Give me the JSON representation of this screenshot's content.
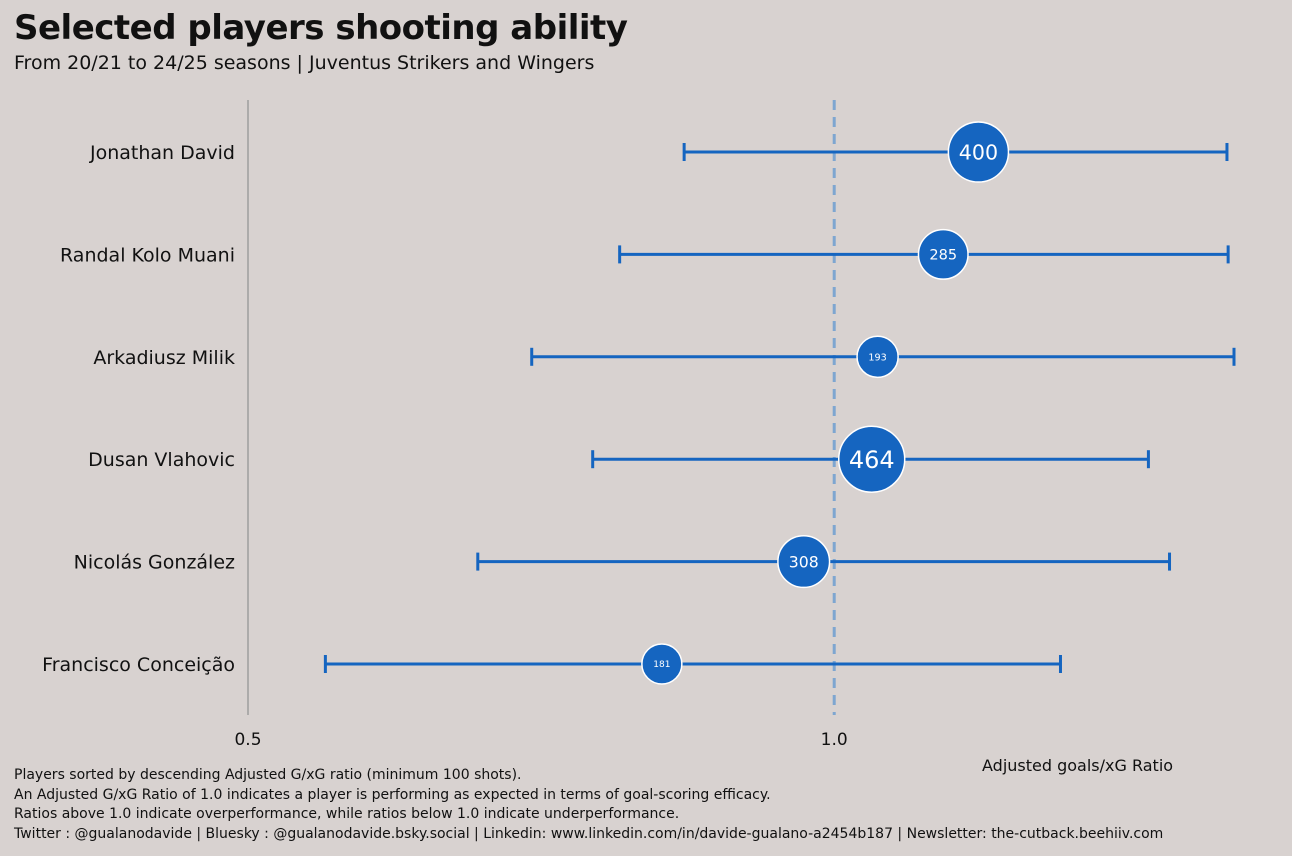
{
  "chart_data": {
    "type": "scatter",
    "title": "Selected players shooting ability",
    "subtitle": "From 20/21 to 24/25 seasons | Juventus Strikers and Wingers",
    "xlabel": "Adjusted goals/xG Ratio",
    "ylabel": "",
    "xlim": [
      0.5,
      1.37
    ],
    "x_ticks": [
      0.5,
      1.0
    ],
    "x_tick_labels": [
      "0.5",
      "1.0"
    ],
    "reference_line": 1.0,
    "grid": false,
    "point_label_meaning": "shots",
    "players": [
      {
        "name": "Jonathan David",
        "ratio": 1.123,
        "low": 0.872,
        "high": 1.335,
        "shots": 400
      },
      {
        "name": "Randal Kolo Muani",
        "ratio": 1.093,
        "low": 0.817,
        "high": 1.336,
        "shots": 285
      },
      {
        "name": "Arkadiusz Milik",
        "ratio": 1.037,
        "low": 0.742,
        "high": 1.341,
        "shots": 193
      },
      {
        "name": "Dusan Vlahovic",
        "ratio": 1.032,
        "low": 0.794,
        "high": 1.268,
        "shots": 464
      },
      {
        "name": "Nicolás González",
        "ratio": 0.974,
        "low": 0.696,
        "high": 1.286,
        "shots": 308
      },
      {
        "name": "Francisco Conceição",
        "ratio": 0.853,
        "low": 0.566,
        "high": 1.193,
        "shots": 181
      }
    ]
  },
  "footer": {
    "line1": "Players sorted by descending Adjusted G/xG ratio (minimum 100 shots).",
    "line2": "An Adjusted G/xG Ratio of 1.0 indicates a player is performing as expected in terms of goal-scoring efficacy.",
    "line3": "Ratios above 1.0 indicate overperformance, while ratios below 1.0 indicate underperformance.",
    "line4": "Twitter : @gualanodavide | Bluesky : @gualanodavide.bsky.social | Linkedin: www.linkedin.com/in/davide-gualano-a2454b187 | Newsletter: the-cutback.beehiiv.com"
  },
  "colors": {
    "background": "#d8d2d0",
    "accent": "#1565c0",
    "reference_line": "#7ea6d0",
    "axis_line": "#9e9e9e"
  }
}
